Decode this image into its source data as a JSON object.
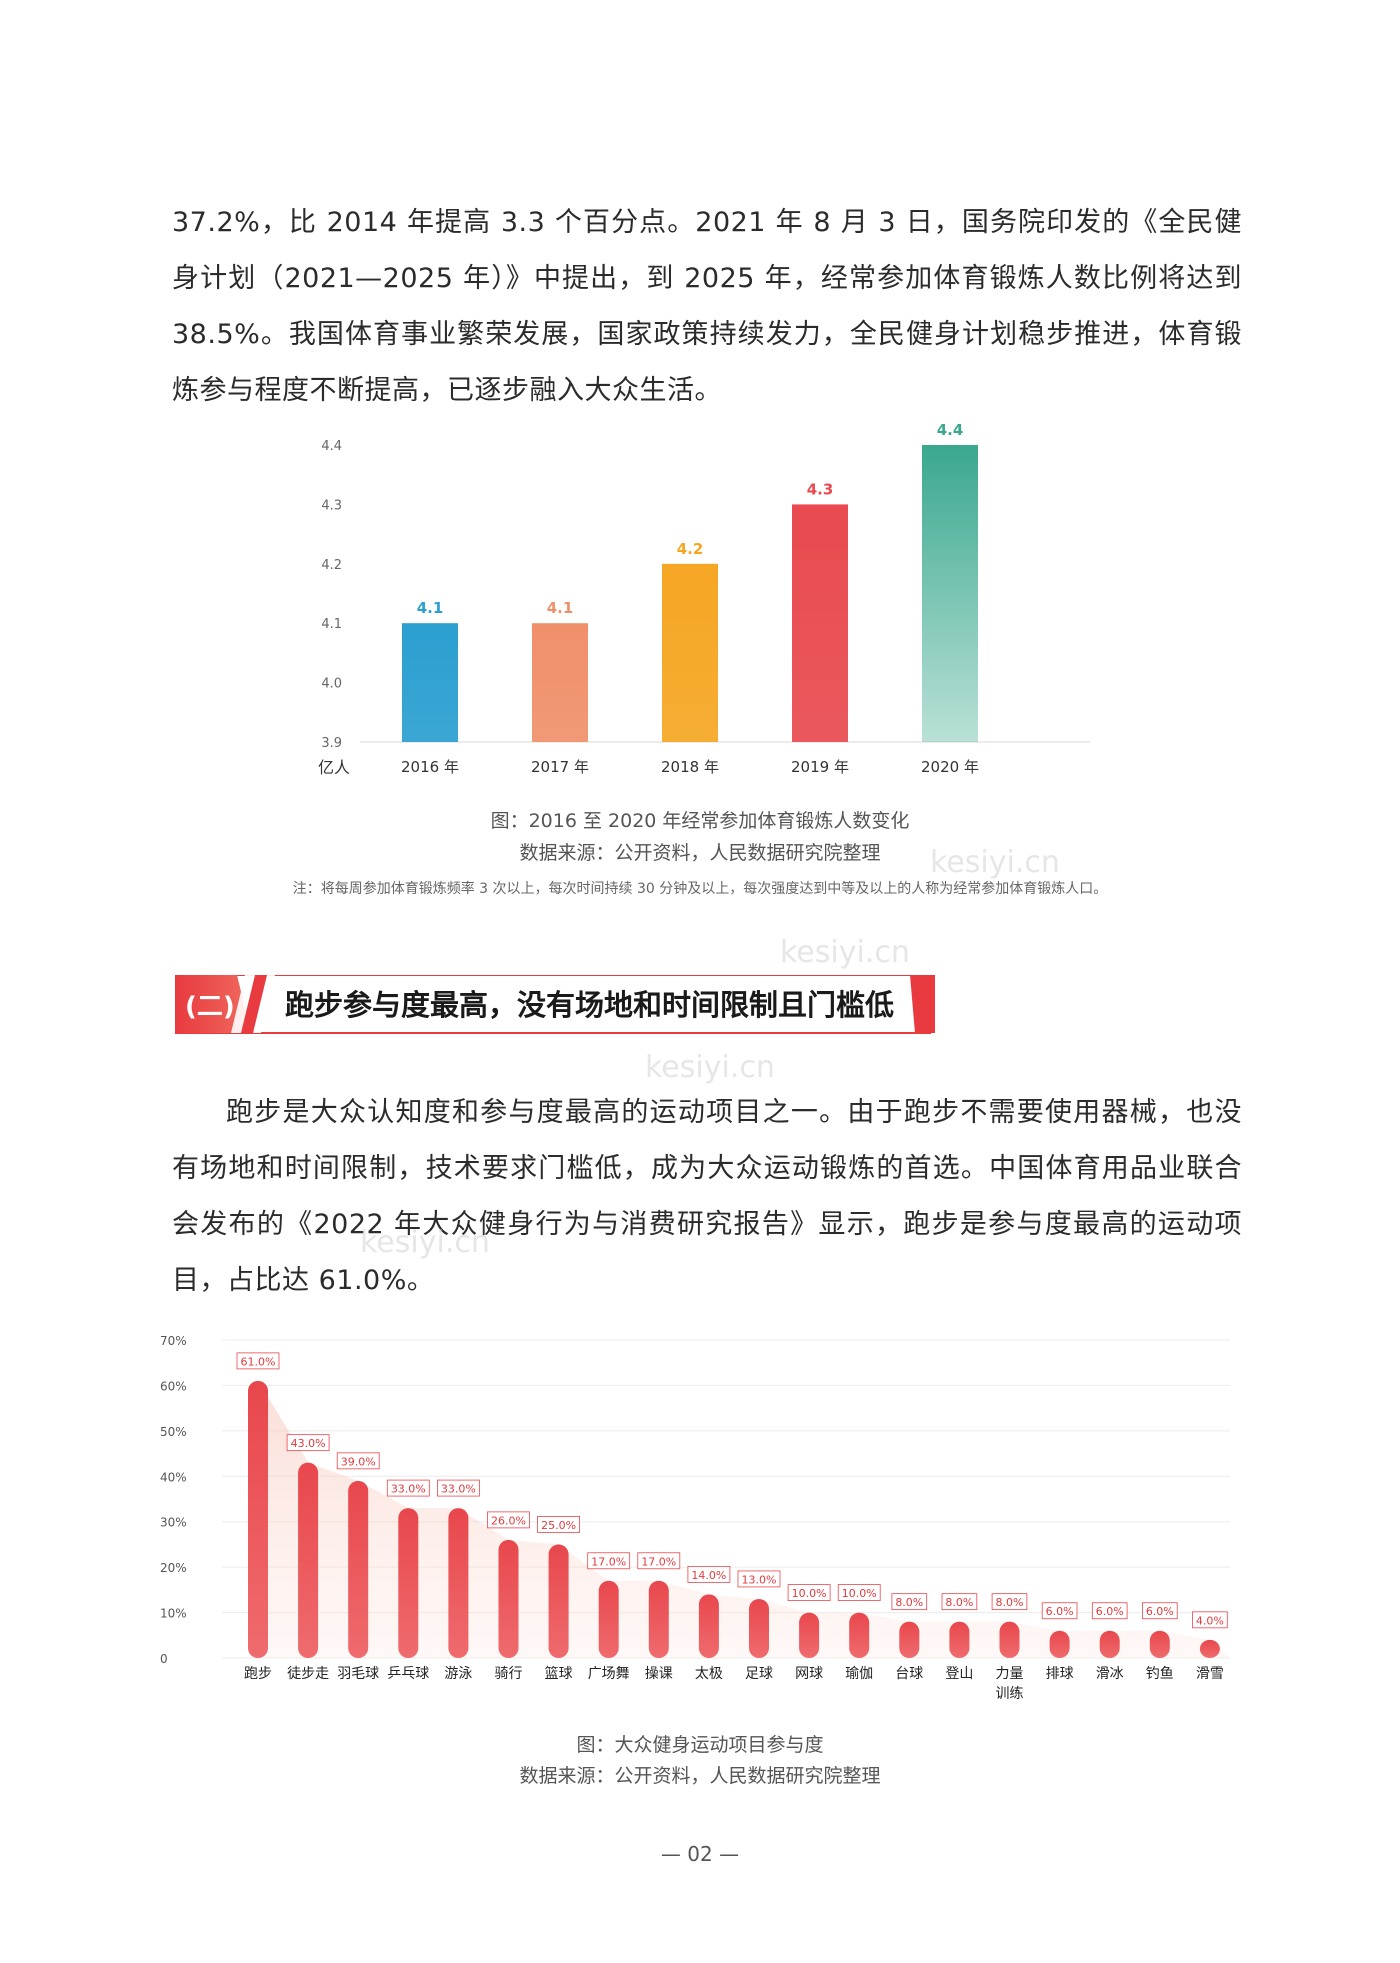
{
  "paragraphs": {
    "p1": "37.2%，比 2014 年提高 3.3 个百分点。2021 年 8 月 3 日，国务院印发的《全民健身计划（2021—2025 年）》中提出，到 2025 年，经常参加体育锻炼人数比例将达到 38.5%。我国体育事业繁荣发展，国家政策持续发力，全民健身计划稳步推进，体育锻炼参与程度不断提高，已逐步融入大众生活。",
    "p2": "跑步是大众认知度和参与度最高的运动项目之一。由于跑步不需要使用器械，也没有场地和时间限制，技术要求门槛低，成为大众运动锻炼的首选。中国体育用品业联合会发布的《2022 年大众健身行为与消费研究报告》显示，跑步是参与度最高的运动项目，占比达 61.0%。"
  },
  "section": {
    "number": "(二)",
    "title": "跑步参与度最高，没有场地和时间限制且门槛低"
  },
  "chart1": {
    "caption": "图：2016 至 2020 年经常参加体育锻炼人数变化",
    "source": "数据来源：公开资料，人民数据研究院整理",
    "note": "注：将每周参加体育锻炼频率 3 次以上，每次时间持续 30 分钟及以上，每次强度达到中等及以上的人称为经常参加体育锻炼人口。"
  },
  "chart2": {
    "caption": "图：大众健身运动项目参与度",
    "source": "数据来源：公开资料，人民数据研究院整理"
  },
  "watermark": "kesiyi.cn",
  "page_number": "— 02 —",
  "chart_data": [
    {
      "type": "bar",
      "categories": [
        "2016 年",
        "2017 年",
        "2018 年",
        "2019 年",
        "2020 年"
      ],
      "values": [
        4.1,
        4.1,
        4.2,
        4.3,
        4.4
      ],
      "value_labels": [
        "4.1",
        "4.1",
        "4.2",
        "4.3",
        "4.4"
      ],
      "colors": [
        "#2a9fd0",
        "#f0906a",
        "#f5a623",
        "#e84a4f",
        "#3aa88e"
      ],
      "ylabel": "亿人",
      "ylim": [
        3.9,
        4.4
      ],
      "yticks": [
        "3.9",
        "4.0",
        "4.1",
        "4.2",
        "4.3",
        "4.4"
      ],
      "grid": false
    },
    {
      "type": "bar",
      "categories": [
        "跑步",
        "徒步走",
        "羽毛球",
        "乒乓球",
        "游泳",
        "骑行",
        "篮球",
        "广场舞",
        "操课",
        "太极",
        "足球",
        "网球",
        "瑜伽",
        "台球",
        "登山",
        "力量训练",
        "排球",
        "滑冰",
        "钓鱼",
        "滑雪"
      ],
      "category_lines": [
        [
          "跑步"
        ],
        [
          "徒步走"
        ],
        [
          "羽毛球"
        ],
        [
          "乒乓球"
        ],
        [
          "游泳"
        ],
        [
          "骑行"
        ],
        [
          "篮球"
        ],
        [
          "广场舞"
        ],
        [
          "操课"
        ],
        [
          "太极"
        ],
        [
          "足球"
        ],
        [
          "网球"
        ],
        [
          "瑜伽"
        ],
        [
          "台球"
        ],
        [
          "登山"
        ],
        [
          "力量",
          "训练"
        ],
        [
          "排球"
        ],
        [
          "滑冰"
        ],
        [
          "钓鱼"
        ],
        [
          "滑雪"
        ]
      ],
      "values": [
        61.0,
        43.0,
        39.0,
        33.0,
        33.0,
        26.0,
        25.0,
        17.0,
        17.0,
        14.0,
        13.0,
        10.0,
        10.0,
        8.0,
        8.0,
        8.0,
        6.0,
        6.0,
        6.0,
        4.0
      ],
      "value_labels": [
        "61.0%",
        "43.0%",
        "39.0%",
        "33.0%",
        "33.0%",
        "26.0%",
        "25.0%",
        "17.0%",
        "17.0%",
        "14.0%",
        "13.0%",
        "10.0%",
        "10.0%",
        "8.0%",
        "8.0%",
        "8.0%",
        "6.0%",
        "6.0%",
        "6.0%",
        "4.0%"
      ],
      "ylim": [
        0,
        70
      ],
      "yticks": [
        "0",
        "10%",
        "20%",
        "30%",
        "40%",
        "50%",
        "60%",
        "70%"
      ],
      "grid": true,
      "bar_color": "#e8474c"
    }
  ]
}
